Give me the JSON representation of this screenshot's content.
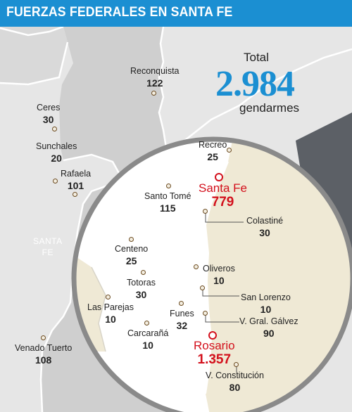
{
  "title": "FUERZAS FEDERALES EN SANTA FE",
  "total": {
    "label": "Total",
    "value": "2.984",
    "unit": "gendarmes"
  },
  "province": {
    "line1": "SANTA",
    "line2": "FE"
  },
  "colors": {
    "accent": "#1b8fd2",
    "highlight": "#d3101c"
  },
  "cities": {
    "reconquista": {
      "name": "Reconquista",
      "value": "122"
    },
    "ceres": {
      "name": "Ceres",
      "value": "30"
    },
    "sunchales": {
      "name": "Sunchales",
      "value": "20"
    },
    "rafaela": {
      "name": "Rafaela",
      "value": "101"
    },
    "venado_tuerto": {
      "name": "Venado Tuerto",
      "value": "108"
    },
    "recreo": {
      "name": "Recreo",
      "value": "25"
    },
    "santa_fe": {
      "name": "Santa Fe",
      "value": "779"
    },
    "santo_tome": {
      "name": "Santo Tomé",
      "value": "115"
    },
    "colastine": {
      "name": "Colastiné",
      "value": "30"
    },
    "centeno": {
      "name": "Centeno",
      "value": "25"
    },
    "oliveros": {
      "name": "Oliveros",
      "value": "10"
    },
    "totoras": {
      "name": "Totoras",
      "value": "30"
    },
    "san_lorenzo": {
      "name": "San Lorenzo",
      "value": "10"
    },
    "las_parejas": {
      "name": "Las Parejas",
      "value": "10"
    },
    "funes": {
      "name": "Funes",
      "value": "32"
    },
    "v_gral_galvez": {
      "name": "V. Gral. Gálvez",
      "value": "90"
    },
    "carcarana": {
      "name": "Carcarañá",
      "value": "10"
    },
    "rosario": {
      "name": "Rosario",
      "value": "1.357"
    },
    "v_constitucion": {
      "name": "V. Constitución",
      "value": "80"
    }
  }
}
